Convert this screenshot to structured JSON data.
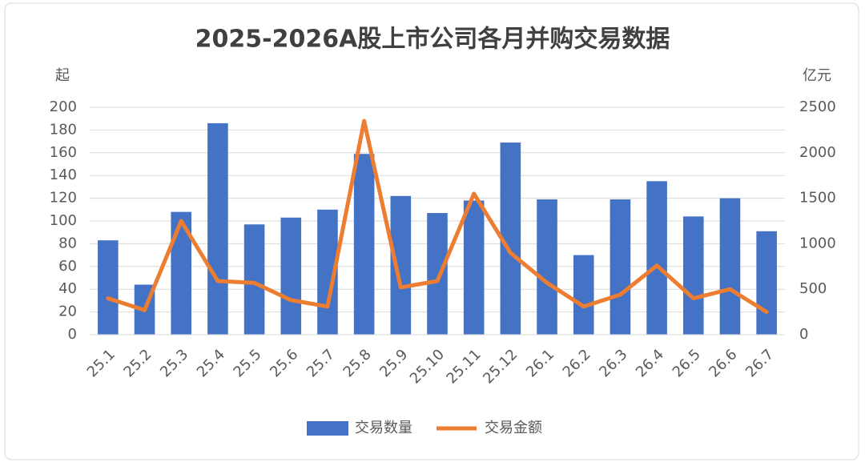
{
  "chart_data": {
    "type": "bar",
    "title": "2025-2026A股上市公司各月并购交易数据",
    "y_label": "起",
    "y2_label": "亿元",
    "categories": [
      "25.1",
      "25.2",
      "25.3",
      "25.4",
      "25.5",
      "25.6",
      "25.7",
      "25.8",
      "25.9",
      "25.10",
      "25.11",
      "25.12",
      "26.1",
      "26.2",
      "26.3",
      "26.4",
      "26.5",
      "26.6",
      "26.7"
    ],
    "series": [
      {
        "name": "交易数量",
        "type": "bar",
        "color": "#4472c4",
        "values": [
          83,
          44,
          108,
          186,
          97,
          103,
          110,
          159,
          122,
          107,
          118,
          169,
          119,
          70,
          119,
          135,
          104,
          120,
          91
        ]
      },
      {
        "name": "交易金额",
        "type": "line",
        "axis": "y2",
        "color": "#ed7d31",
        "values": [
          400,
          270,
          1250,
          590,
          570,
          380,
          310,
          2350,
          520,
          590,
          1550,
          900,
          570,
          310,
          440,
          760,
          400,
          500,
          250
        ]
      }
    ],
    "ylim": [
      0,
      200
    ],
    "yticks": [
      0,
      20,
      40,
      60,
      80,
      100,
      120,
      140,
      160,
      180,
      200
    ],
    "y2lim": [
      0,
      2500
    ],
    "y2ticks": [
      0,
      500,
      1000,
      1500,
      2000,
      2500
    ],
    "grid": true,
    "legend": "bottom"
  }
}
